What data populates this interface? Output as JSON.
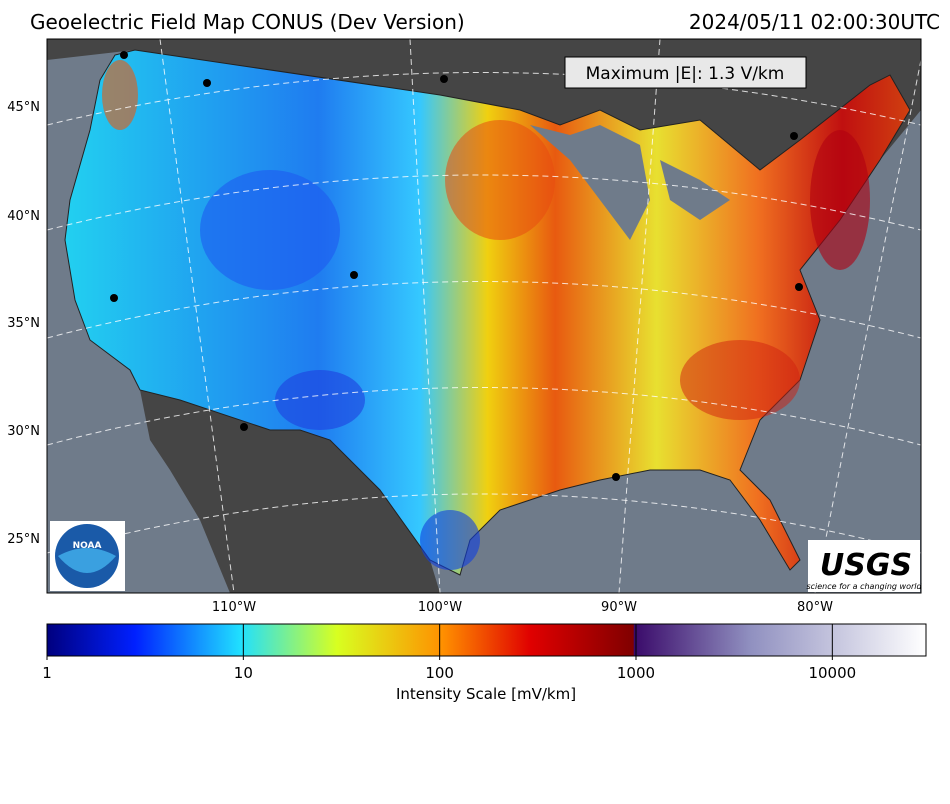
{
  "header": {
    "title": "Geoelectric Field Map CONUS (Dev Version)",
    "timestamp": "2024/05/11 02:00:30UTC"
  },
  "map": {
    "annotation": "Maximum |E|: 1.3 V/km",
    "lat_labels": [
      "45°N",
      "40°N",
      "35°N",
      "30°N",
      "25°N"
    ],
    "lon_labels": [
      "110°W",
      "100°W",
      "90°W",
      "80°W"
    ],
    "logos": {
      "noaa": "NOAA",
      "usgs": "USGS",
      "usgs_tagline": "science for a changing world"
    }
  },
  "colorbar": {
    "label": "Intensity Scale [mV/km]",
    "scale": "log",
    "lim": [
      1,
      30000
    ],
    "ticks": [
      1,
      10,
      100,
      1000,
      10000
    ]
  }
}
